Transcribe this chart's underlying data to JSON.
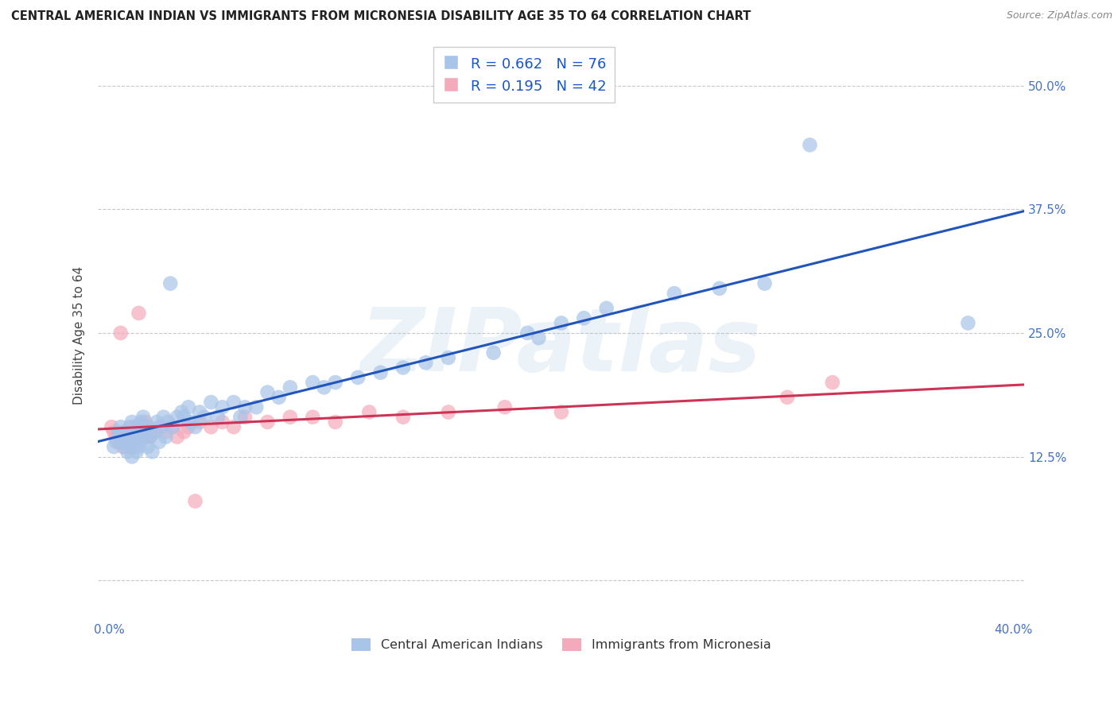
{
  "title": "CENTRAL AMERICAN INDIAN VS IMMIGRANTS FROM MICRONESIA DISABILITY AGE 35 TO 64 CORRELATION CHART",
  "source": "Source: ZipAtlas.com",
  "ylabel": "Disability Age 35 to 64",
  "ytick_values": [
    0.0,
    0.125,
    0.25,
    0.375,
    0.5
  ],
  "ytick_labels": [
    "",
    "12.5%",
    "25.0%",
    "37.5%",
    "50.0%"
  ],
  "xlim": [
    -0.005,
    0.405
  ],
  "ylim": [
    -0.04,
    0.535
  ],
  "blue_R": 0.662,
  "blue_N": 76,
  "pink_R": 0.195,
  "pink_N": 42,
  "blue_color": "#a8c4e8",
  "pink_color": "#f5aabb",
  "blue_line_color": "#2255bb",
  "pink_line_color": "#cc3355",
  "watermark": "ZIPatlas",
  "legend_label_blue": "Central American Indians",
  "legend_label_pink": "Immigrants from Micronesia",
  "blue_scatter_x": [
    0.002,
    0.003,
    0.004,
    0.005,
    0.005,
    0.006,
    0.007,
    0.007,
    0.008,
    0.008,
    0.009,
    0.009,
    0.01,
    0.01,
    0.01,
    0.011,
    0.011,
    0.012,
    0.012,
    0.013,
    0.013,
    0.014,
    0.014,
    0.015,
    0.015,
    0.016,
    0.017,
    0.017,
    0.018,
    0.019,
    0.02,
    0.021,
    0.022,
    0.023,
    0.024,
    0.025,
    0.026,
    0.027,
    0.028,
    0.03,
    0.032,
    0.033,
    0.035,
    0.036,
    0.038,
    0.04,
    0.042,
    0.045,
    0.048,
    0.05,
    0.055,
    0.058,
    0.06,
    0.065,
    0.07,
    0.075,
    0.08,
    0.09,
    0.095,
    0.1,
    0.11,
    0.12,
    0.13,
    0.14,
    0.15,
    0.17,
    0.185,
    0.19,
    0.2,
    0.21,
    0.22,
    0.25,
    0.27,
    0.29,
    0.31,
    0.38
  ],
  "blue_scatter_y": [
    0.135,
    0.14,
    0.15,
    0.145,
    0.155,
    0.14,
    0.135,
    0.15,
    0.13,
    0.145,
    0.14,
    0.155,
    0.125,
    0.14,
    0.16,
    0.135,
    0.15,
    0.13,
    0.145,
    0.135,
    0.155,
    0.14,
    0.16,
    0.15,
    0.165,
    0.145,
    0.135,
    0.155,
    0.145,
    0.13,
    0.15,
    0.16,
    0.14,
    0.155,
    0.165,
    0.145,
    0.16,
    0.3,
    0.155,
    0.165,
    0.17,
    0.165,
    0.175,
    0.16,
    0.155,
    0.17,
    0.165,
    0.18,
    0.165,
    0.175,
    0.18,
    0.165,
    0.175,
    0.175,
    0.19,
    0.185,
    0.195,
    0.2,
    0.195,
    0.2,
    0.205,
    0.21,
    0.215,
    0.22,
    0.225,
    0.23,
    0.25,
    0.245,
    0.26,
    0.265,
    0.275,
    0.29,
    0.295,
    0.3,
    0.44,
    0.26
  ],
  "pink_scatter_x": [
    0.001,
    0.002,
    0.003,
    0.004,
    0.005,
    0.006,
    0.007,
    0.008,
    0.009,
    0.01,
    0.011,
    0.012,
    0.013,
    0.014,
    0.015,
    0.016,
    0.017,
    0.018,
    0.02,
    0.022,
    0.025,
    0.028,
    0.03,
    0.033,
    0.035,
    0.038,
    0.04,
    0.045,
    0.05,
    0.055,
    0.06,
    0.07,
    0.08,
    0.09,
    0.1,
    0.115,
    0.13,
    0.15,
    0.175,
    0.2,
    0.3,
    0.32
  ],
  "pink_scatter_y": [
    0.155,
    0.15,
    0.145,
    0.14,
    0.25,
    0.135,
    0.15,
    0.145,
    0.135,
    0.14,
    0.155,
    0.15,
    0.27,
    0.145,
    0.155,
    0.16,
    0.155,
    0.145,
    0.15,
    0.155,
    0.15,
    0.155,
    0.145,
    0.15,
    0.155,
    0.08,
    0.16,
    0.155,
    0.16,
    0.155,
    0.165,
    0.16,
    0.165,
    0.165,
    0.16,
    0.17,
    0.165,
    0.17,
    0.175,
    0.17,
    0.185,
    0.2
  ]
}
